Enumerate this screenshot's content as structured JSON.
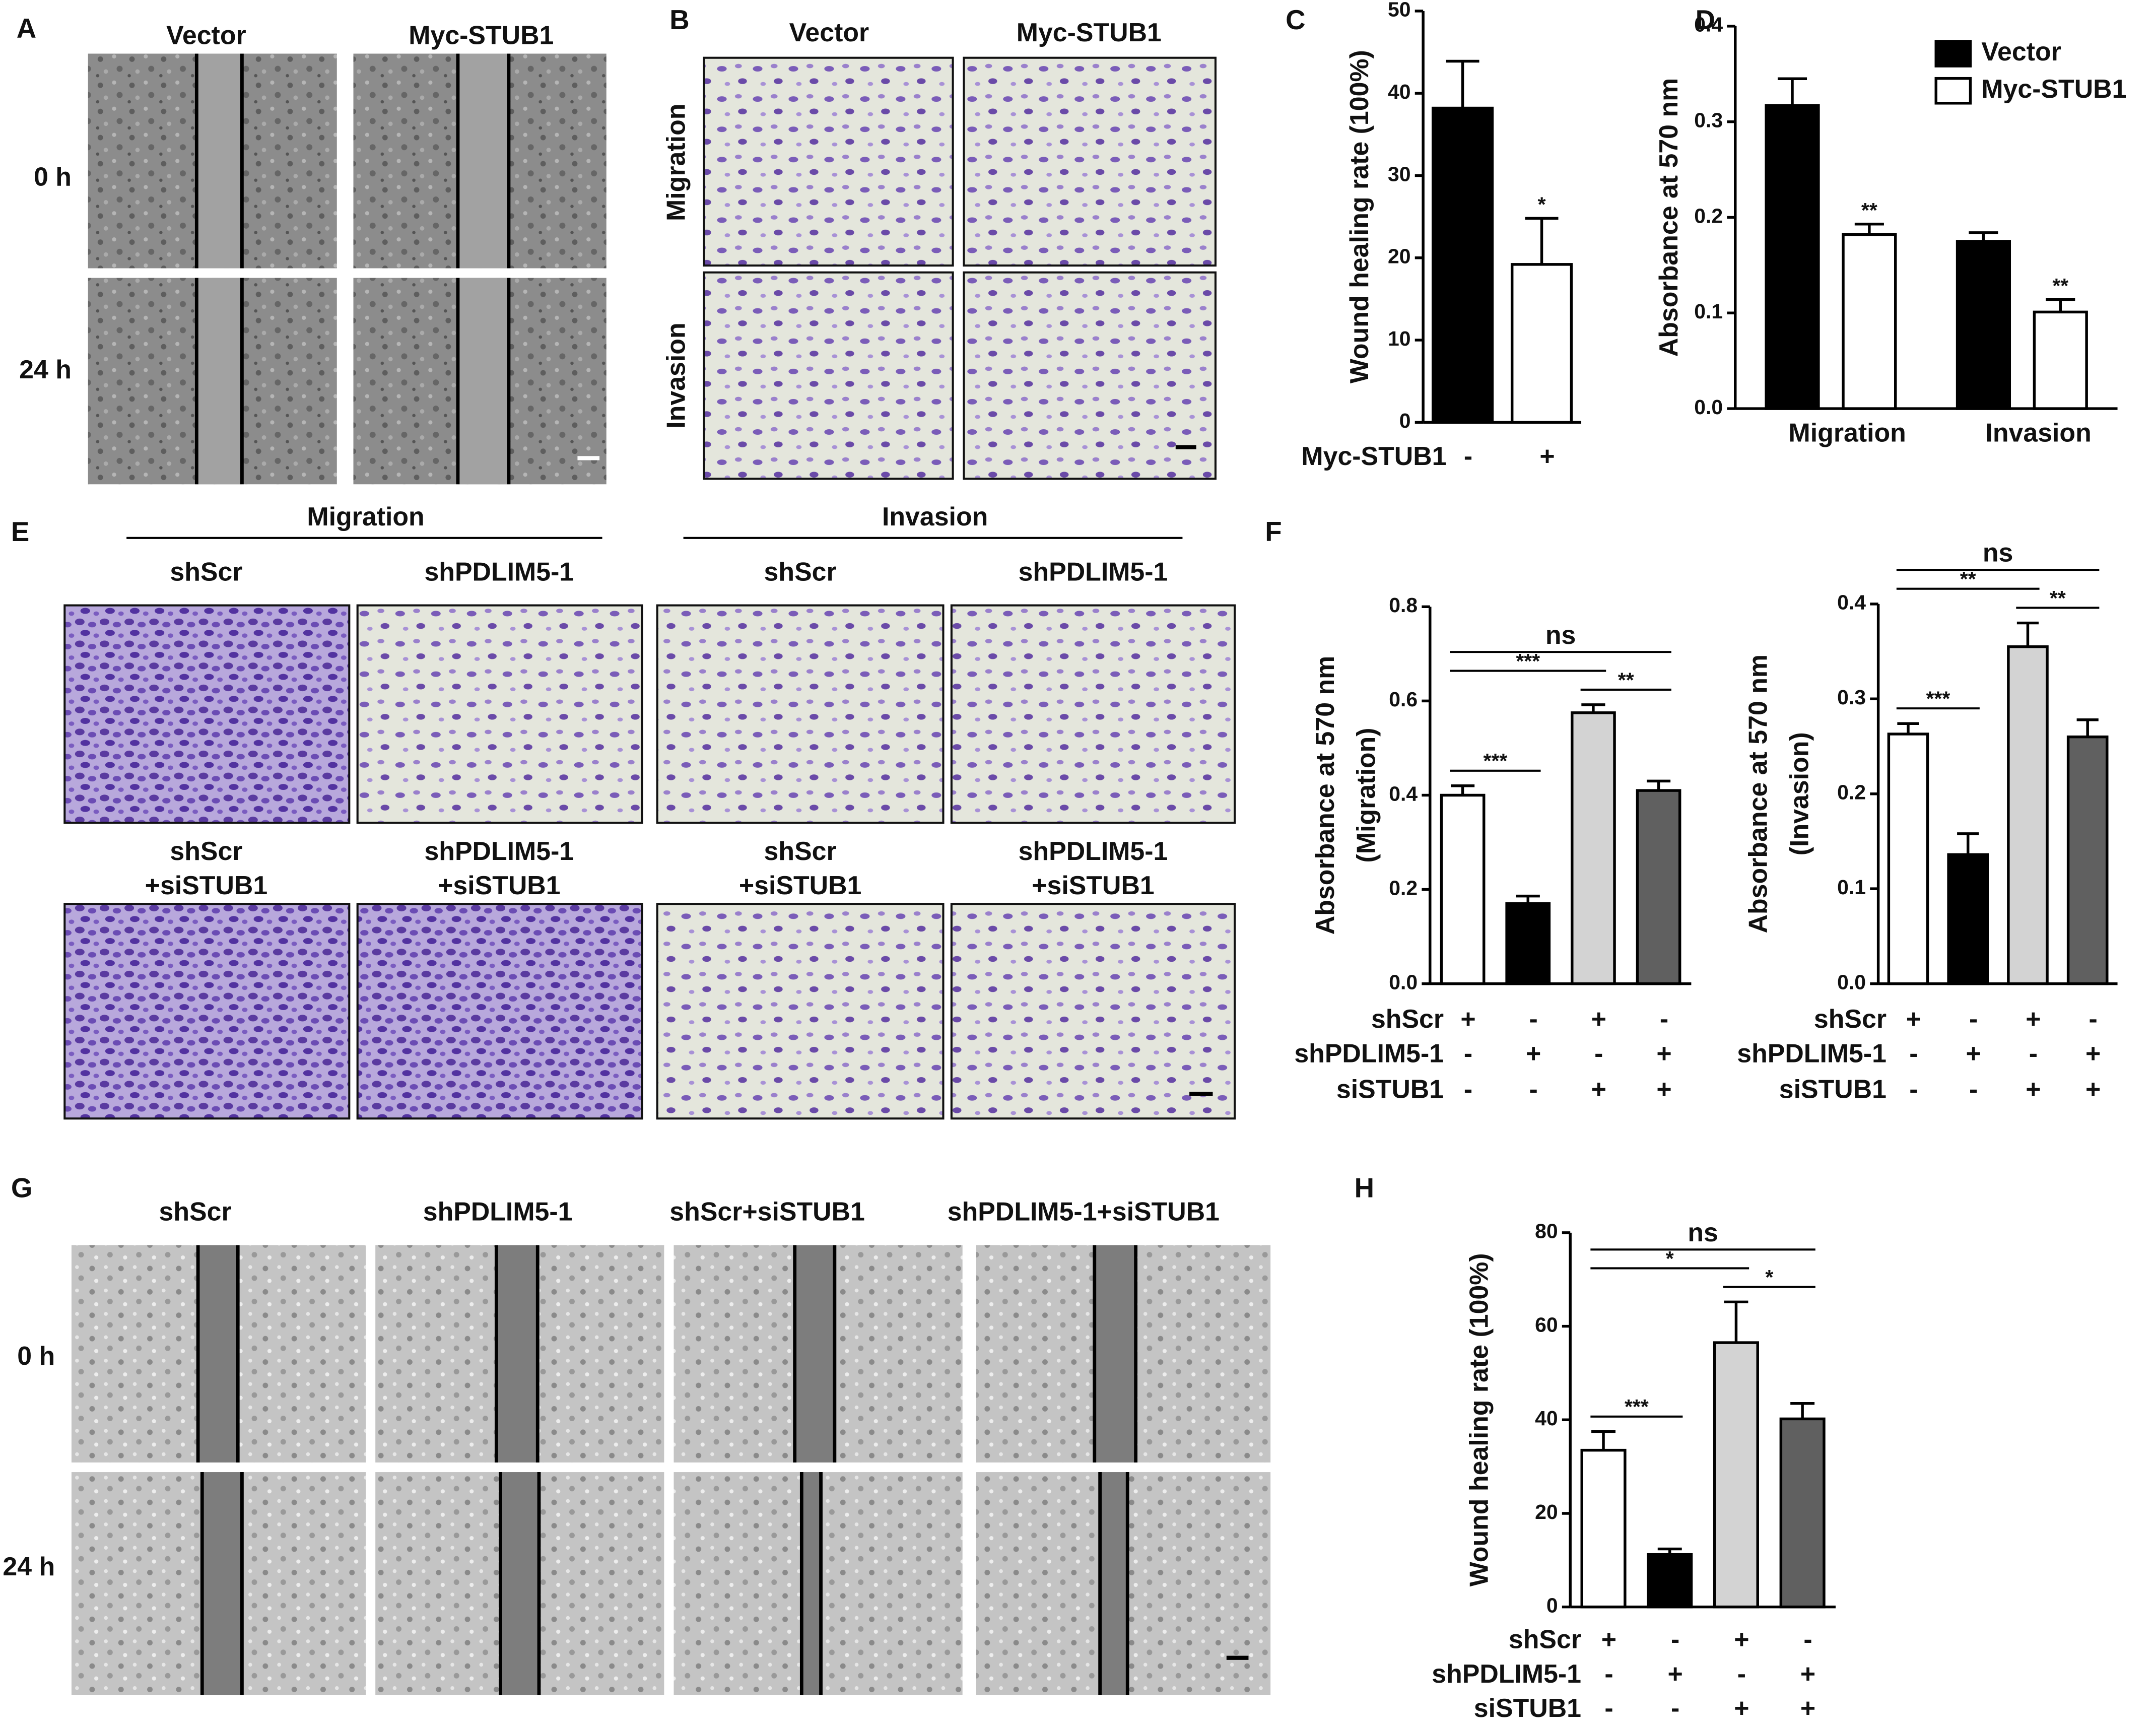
{
  "panels": {
    "A": {
      "label": "A",
      "columns": [
        "Vector",
        "Myc-STUB1"
      ],
      "rows": [
        "0 h",
        "24 h"
      ]
    },
    "B": {
      "label": "B",
      "columns": [
        "Vector",
        "Myc-STUB1"
      ],
      "rows": [
        "Migration",
        "Invasion"
      ]
    },
    "E": {
      "label": "E",
      "groups": [
        "Migration",
        "Invasion"
      ],
      "top_columns": [
        "shScr",
        "shPDLIM5-1",
        "shScr",
        "shPDLIM5-1"
      ],
      "bottom_columns": [
        [
          "shScr",
          "+siSTUB1"
        ],
        [
          "shPDLIM5-1",
          "+siSTUB1"
        ],
        [
          "shScr",
          "+siSTUB1"
        ],
        [
          "shPDLIM5-1",
          "+siSTUB1"
        ]
      ]
    },
    "G": {
      "label": "G",
      "columns": [
        "shScr",
        "shPDLIM5-1",
        "shScr+siSTUB1",
        "shPDLIM5-1+siSTUB1"
      ],
      "rows": [
        "0 h",
        "24 h"
      ]
    }
  },
  "chart_data": [
    {
      "panel_label": "C",
      "type": "bar",
      "ylabel": [
        "Wound healing rate (100%)"
      ],
      "values": [
        38.2,
        19.2
      ],
      "errors": [
        5.7,
        5.6
      ],
      "colors": [
        "#000000",
        "#ffffff"
      ],
      "ylim": [
        0,
        50
      ],
      "yticks": [
        0,
        10,
        20,
        30,
        40,
        50
      ],
      "condition_rows": [
        {
          "name": "Myc-STUB1",
          "signs": [
            "-",
            "+"
          ]
        }
      ],
      "annotations": [
        {
          "bar": 1,
          "text": "*"
        }
      ]
    },
    {
      "panel_label": "D",
      "type": "grouped_bar",
      "ylabel": [
        "Absorbance at 570 nm"
      ],
      "categories": [
        "Migration",
        "Invasion"
      ],
      "series": [
        {
          "name": "Vector",
          "color": "#000000",
          "values": [
            0.317,
            0.175
          ],
          "errors": [
            0.028,
            0.009
          ]
        },
        {
          "name": "Myc-STUB1",
          "color": "#ffffff",
          "values": [
            0.182,
            0.101
          ],
          "errors": [
            0.011,
            0.013
          ],
          "annotations": [
            "**",
            "**"
          ]
        }
      ],
      "ylim": [
        0,
        0.4
      ],
      "yticks": [
        {
          "value": 0,
          "label": "0.0"
        },
        0.1,
        0.2,
        0.3,
        0.4
      ],
      "legend": "upper right"
    },
    {
      "panel_label": "F",
      "type": "bar",
      "ylabel": [
        "Absorbance at 570 nm",
        "(Migration)"
      ],
      "values": [
        0.4,
        0.17,
        0.575,
        0.41
      ],
      "errors": [
        0.02,
        0.016,
        0.017,
        0.02
      ],
      "colors": [
        "#ffffff",
        "#000000",
        "#d3d3d3",
        "#606060"
      ],
      "ylim": [
        0,
        0.8
      ],
      "yticks": [
        {
          "value": 0,
          "label": "0.0"
        },
        0.2,
        0.4,
        0.6,
        0.8
      ],
      "condition_rows": [
        {
          "name": "shScr",
          "signs": [
            "+",
            "-",
            "+",
            "-"
          ]
        },
        {
          "name": "shPDLIM5-1",
          "signs": [
            "-",
            "+",
            "-",
            "+"
          ]
        },
        {
          "name": "siSTUB1",
          "signs": [
            "-",
            "-",
            "+",
            "+"
          ]
        }
      ],
      "brackets": [
        {
          "from": 0,
          "to": 1,
          "text": "***"
        },
        {
          "from": 0,
          "to": 2,
          "text": "***"
        },
        {
          "from": 2,
          "to": 3,
          "text": "**"
        },
        {
          "from": 0,
          "to": 3,
          "text": "ns"
        }
      ]
    },
    {
      "type": "bar",
      "ylabel": [
        "Absorbance at 570 nm",
        "(Invasion)"
      ],
      "values": [
        0.263,
        0.136,
        0.355,
        0.26
      ],
      "errors": [
        0.011,
        0.022,
        0.025,
        0.018
      ],
      "colors": [
        "#ffffff",
        "#000000",
        "#d3d3d3",
        "#606060"
      ],
      "ylim": [
        0,
        0.4
      ],
      "yticks": [
        {
          "value": 0,
          "label": "0.0"
        },
        0.1,
        0.2,
        0.3,
        0.4
      ],
      "condition_rows": [
        {
          "name": "shScr",
          "signs": [
            "+",
            "-",
            "+",
            "-"
          ]
        },
        {
          "name": "shPDLIM5-1",
          "signs": [
            "-",
            "+",
            "-",
            "+"
          ]
        },
        {
          "name": "siSTUB1",
          "signs": [
            "-",
            "-",
            "+",
            "+"
          ]
        }
      ],
      "brackets": [
        {
          "from": 0,
          "to": 1,
          "text": "***"
        },
        {
          "from": 0,
          "to": 2,
          "text": "**"
        },
        {
          "from": 2,
          "to": 3,
          "text": "**"
        },
        {
          "from": 0,
          "to": 3,
          "text": "ns"
        }
      ]
    },
    {
      "panel_label": "H",
      "type": "bar",
      "ylabel": [
        "Wound healing rate (100%)"
      ],
      "values": [
        33.5,
        11.2,
        56.5,
        40.2
      ],
      "errors": [
        4.0,
        1.2,
        8.7,
        3.3
      ],
      "colors": [
        "#ffffff",
        "#000000",
        "#d3d3d3",
        "#606060"
      ],
      "ylim": [
        0,
        80
      ],
      "yticks": [
        0,
        20,
        40,
        60,
        80
      ],
      "condition_rows": [
        {
          "name": "shScr",
          "signs": [
            "+",
            "-",
            "+",
            "-"
          ]
        },
        {
          "name": "shPDLIM5-1",
          "signs": [
            "-",
            "+",
            "-",
            "+"
          ]
        },
        {
          "name": "siSTUB1",
          "signs": [
            "-",
            "-",
            "+",
            "+"
          ]
        }
      ],
      "brackets": [
        {
          "from": 0,
          "to": 1,
          "text": "***"
        },
        {
          "from": 0,
          "to": 2,
          "text": "*"
        },
        {
          "from": 2,
          "to": 3,
          "text": "*"
        },
        {
          "from": 0,
          "to": 3,
          "text": "ns"
        }
      ]
    }
  ]
}
